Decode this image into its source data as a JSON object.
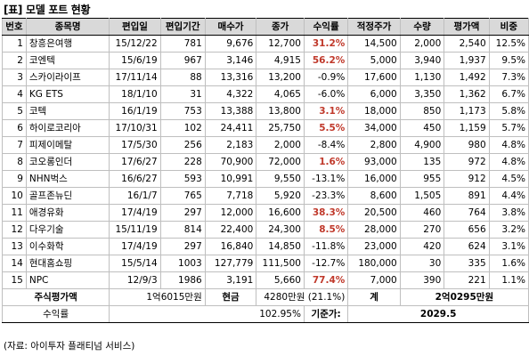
{
  "title": "[표] 모델 포트 현황",
  "headers": [
    "번호",
    "종목명",
    "편입일",
    "편입기간",
    "매수가",
    "종가",
    "수익률",
    "적정주가",
    "수량",
    "평가액",
    "비중"
  ],
  "rows": [
    {
      "no": "1",
      "name": "창흥은여행",
      "date": "15/12/22",
      "period": "781",
      "buy": "9,676",
      "close": "12,700",
      "ret": "31.2%",
      "fair": "14,500",
      "qty": "2,000",
      "value": "2,540",
      "weight": "12.5%",
      "positive": true
    },
    {
      "no": "2",
      "name": "코엔텍",
      "date": "15/6/19",
      "period": "967",
      "buy": "3,146",
      "close": "4,915",
      "ret": "56.2%",
      "fair": "5,000",
      "qty": "3,940",
      "value": "1,937",
      "weight": "9.5%",
      "positive": true
    },
    {
      "no": "3",
      "name": "스카이라이프",
      "date": "17/11/14",
      "period": "88",
      "buy": "13,316",
      "close": "13,200",
      "ret": "-0.9%",
      "fair": "17,600",
      "qty": "1,130",
      "value": "1,492",
      "weight": "7.3%",
      "positive": false
    },
    {
      "no": "4",
      "name": "KG ETS",
      "date": "18/1/10",
      "period": "31",
      "buy": "4,322",
      "close": "4,065",
      "ret": "-6.0%",
      "fair": "6,000",
      "qty": "3,350",
      "value": "1,362",
      "weight": "6.7%",
      "positive": false
    },
    {
      "no": "5",
      "name": "코텍",
      "date": "16/1/19",
      "period": "753",
      "buy": "13,388",
      "close": "13,800",
      "ret": "3.1%",
      "fair": "18,000",
      "qty": "850",
      "value": "1,173",
      "weight": "5.8%",
      "positive": true
    },
    {
      "no": "6",
      "name": "하이로코리아",
      "date": "17/10/31",
      "period": "102",
      "buy": "24,411",
      "close": "25,750",
      "ret": "5.5%",
      "fair": "34,000",
      "qty": "450",
      "value": "1,159",
      "weight": "5.7%",
      "positive": true
    },
    {
      "no": "7",
      "name": "피제이메탈",
      "date": "17/5/30",
      "period": "256",
      "buy": "2,183",
      "close": "2,000",
      "ret": "-8.4%",
      "fair": "2,800",
      "qty": "4,900",
      "value": "980",
      "weight": "4.8%",
      "positive": false
    },
    {
      "no": "8",
      "name": "코오롱인더",
      "date": "17/6/27",
      "period": "228",
      "buy": "70,900",
      "close": "72,000",
      "ret": "1.6%",
      "fair": "93,000",
      "qty": "135",
      "value": "972",
      "weight": "4.8%",
      "positive": true
    },
    {
      "no": "9",
      "name": "NHN벅스",
      "date": "16/6/27",
      "period": "593",
      "buy": "10,991",
      "close": "9,550",
      "ret": "-13.1%",
      "fair": "16,000",
      "qty": "955",
      "value": "912",
      "weight": "4.5%",
      "positive": false
    },
    {
      "no": "10",
      "name": "골프존뉴딘",
      "date": "16/1/7",
      "period": "765",
      "buy": "7,718",
      "close": "5,920",
      "ret": "-23.3%",
      "fair": "8,600",
      "qty": "1,505",
      "value": "891",
      "weight": "4.4%",
      "positive": false
    },
    {
      "no": "11",
      "name": "애경유화",
      "date": "17/4/19",
      "period": "297",
      "buy": "12,000",
      "close": "16,600",
      "ret": "38.3%",
      "fair": "20,500",
      "qty": "460",
      "value": "764",
      "weight": "3.8%",
      "positive": true
    },
    {
      "no": "12",
      "name": "다우기술",
      "date": "15/11/19",
      "period": "814",
      "buy": "22,400",
      "close": "24,300",
      "ret": "8.5%",
      "fair": "28,000",
      "qty": "270",
      "value": "656",
      "weight": "3.2%",
      "positive": true
    },
    {
      "no": "13",
      "name": "이수화학",
      "date": "17/4/19",
      "period": "297",
      "buy": "16,840",
      "close": "14,850",
      "ret": "-11.8%",
      "fair": "23,000",
      "qty": "420",
      "value": "624",
      "weight": "3.1%",
      "positive": false
    },
    {
      "no": "14",
      "name": "현대홈쇼핑",
      "date": "15/5/14",
      "period": "1003",
      "buy": "127,779",
      "close": "111,500",
      "ret": "-12.7%",
      "fair": "180,000",
      "qty": "30",
      "value": "335",
      "weight": "1.6%",
      "positive": false
    },
    {
      "no": "15",
      "name": "NPC",
      "date": "12/9/3",
      "period": "1986",
      "buy": "3,191",
      "close": "5,660",
      "ret": "77.4%",
      "fair": "7,000",
      "qty": "390",
      "value": "221",
      "weight": "1.1%",
      "positive": true
    }
  ],
  "summary": {
    "stock_value_label": "주식평가액",
    "stock_value": "1억6015만원",
    "cash_label": "현금",
    "cash_value": "4280만원 (21.1%)",
    "total_label": "계",
    "total_value": "2억0295만원",
    "return_label": "수익률",
    "return_value": "102.95%",
    "base_label": "기준가:",
    "base_value": "2029.5"
  },
  "source": "(자료: 아이투자 플래티넘 서비스)"
}
